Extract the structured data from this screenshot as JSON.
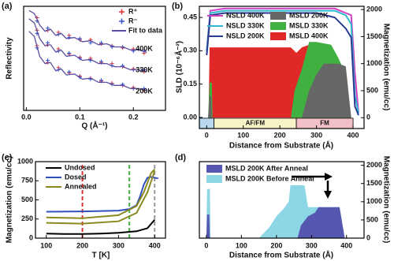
{
  "chart_data": [
    {
      "type": "line",
      "label": "(a)",
      "x_label": "Q (Å⁻¹)",
      "y_label": "Reflectivity",
      "xlim": [
        -0.005,
        0.26
      ],
      "ylim": [
        0,
        10
      ],
      "xticks": [
        {
          "value": 0,
          "label": "0.0"
        },
        0.1,
        0.2
      ],
      "annotations": [
        "400K",
        "330K",
        "200K"
      ],
      "series": [
        {
          "name": "R⁺",
          "color": "#e03030",
          "style": "points",
          "x": [
            0.02,
            0.04,
            0.06,
            0.08,
            0.1,
            0.12,
            0.14,
            0.16,
            0.18,
            0.2,
            0.22,
            0.02,
            0.04,
            0.06,
            0.08,
            0.1,
            0.12,
            0.14,
            0.16,
            0.18,
            0.2,
            0.22,
            0.02,
            0.04,
            0.06,
            0.08,
            0.1,
            0.12,
            0.14,
            0.16,
            0.18,
            0.2,
            0.22
          ],
          "values": [
            8.9,
            7.7,
            7.5,
            7.2,
            6.8,
            6.8,
            6.4,
            6.2,
            6.0,
            5.9,
            5.5,
            7.7,
            6.3,
            5.9,
            5.4,
            5.1,
            5.0,
            4.6,
            4.5,
            4.2,
            4.0,
            3.7,
            6.2,
            4.6,
            4.1,
            3.6,
            3.3,
            3.1,
            2.8,
            2.6,
            2.4,
            2.2,
            1.9
          ]
        },
        {
          "name": "R⁻",
          "color": "#3050d0",
          "style": "points",
          "x": [
            0.02,
            0.04,
            0.06,
            0.08,
            0.1,
            0.12,
            0.14,
            0.16,
            0.18,
            0.2,
            0.22,
            0.02,
            0.04,
            0.06,
            0.08,
            0.1,
            0.12,
            0.14,
            0.16,
            0.18,
            0.2,
            0.22,
            0.02,
            0.04,
            0.06,
            0.08,
            0.1,
            0.12,
            0.14,
            0.16,
            0.18,
            0.2,
            0.22
          ],
          "values": [
            8.6,
            7.9,
            7.3,
            7.0,
            6.9,
            6.5,
            6.5,
            6.1,
            6.1,
            5.7,
            5.7,
            7.4,
            6.5,
            5.7,
            5.5,
            5.0,
            4.8,
            4.7,
            4.3,
            4.3,
            3.9,
            3.9,
            6.0,
            4.8,
            3.9,
            3.7,
            3.2,
            3.0,
            2.9,
            2.5,
            2.5,
            2.1,
            2.1
          ]
        },
        {
          "name": "Fit to data",
          "color": "#5a4fa0",
          "style": "line",
          "x": [
            0.005,
            0.015,
            0.025,
            0.035,
            0.045,
            0.055,
            0.065,
            0.075,
            0.09,
            0.105,
            0.12,
            0.135,
            0.15,
            0.165,
            0.18,
            0.195,
            0.21,
            0.225,
            null,
            0.005,
            0.015,
            0.025,
            0.035,
            0.045,
            0.055,
            0.065,
            0.075,
            0.09,
            0.105,
            0.12,
            0.135,
            0.15,
            0.165,
            0.18,
            0.195,
            0.21,
            0.225,
            null,
            0.005,
            0.015,
            0.025,
            0.035,
            0.045,
            0.055,
            0.065,
            0.075,
            0.09,
            0.105,
            0.12,
            0.135,
            0.15,
            0.165,
            0.18,
            0.195,
            0.21,
            0.225
          ],
          "values": [
            9.6,
            9.3,
            8.2,
            7.6,
            7.8,
            7.2,
            7.4,
            6.9,
            7.0,
            6.6,
            6.7,
            6.3,
            6.4,
            6.1,
            6.1,
            5.8,
            5.8,
            5.6,
            null,
            8.8,
            8.4,
            6.9,
            6.2,
            6.3,
            5.6,
            5.8,
            5.2,
            5.3,
            4.8,
            4.9,
            4.5,
            4.5,
            4.2,
            4.2,
            3.9,
            3.9,
            3.7,
            null,
            7.6,
            7.1,
            5.2,
            4.5,
            4.6,
            3.8,
            4.0,
            3.4,
            3.5,
            3.0,
            3.1,
            2.7,
            2.7,
            2.4,
            2.4,
            2.1,
            2.1,
            1.9
          ]
        }
      ]
    },
    {
      "type": "area",
      "label": "(b)",
      "x_label": "Distance from Substrate (Å)",
      "y_label": "SLD (10⁻⁶Å⁻²)",
      "y2_label": "Magnetization (emu/cc)",
      "xlim": [
        -20,
        430
      ],
      "ylim": [
        -0.05,
        0.5
      ],
      "y2lim": [
        -200,
        2060
      ],
      "xticks": [
        0,
        100,
        200,
        300,
        400
      ],
      "yticks": [
        {
          "value": 0,
          "label": "0.00"
        },
        0.15,
        {
          "value": 0.3,
          "label": "0.30"
        },
        0.45
      ],
      "y2ticks": [
        0,
        500,
        1000,
        1500,
        2000
      ],
      "regions": [
        "AF/FM",
        "FM"
      ],
      "series": [
        {
          "name": "NSLD 400K",
          "color": "#d040c0",
          "style": "line",
          "x": [
            0,
            10,
            50,
            150,
            250,
            300,
            350,
            380,
            395,
            405,
            415
          ],
          "values": [
            0.3,
            0.48,
            0.49,
            0.49,
            0.49,
            0.49,
            0.49,
            0.47,
            0.46,
            0.2,
            0.02
          ]
        },
        {
          "name": "NSLD 330K",
          "color": "#30b8d0",
          "style": "line",
          "x": [
            0,
            10,
            50,
            150,
            250,
            300,
            350,
            380,
            395,
            405,
            415
          ],
          "values": [
            0.3,
            0.47,
            0.48,
            0.48,
            0.48,
            0.48,
            0.48,
            0.46,
            0.42,
            0.1,
            0.02
          ]
        },
        {
          "name": "NSLD 200K",
          "color": "#2a3a90",
          "style": "line",
          "x": [
            0,
            10,
            50,
            150,
            250,
            300,
            350,
            380,
            395,
            405,
            415
          ],
          "values": [
            0.28,
            0.46,
            0.47,
            0.47,
            0.47,
            0.47,
            0.45,
            0.4,
            0.36,
            0.05,
            0.01
          ]
        },
        {
          "name": "MSLD 200K",
          "color": "#666666",
          "style": "area",
          "axis": "y2",
          "x": [
            0,
            4,
            8,
            12,
            14,
            260,
            280,
            300,
            320,
            360,
            380,
            395
          ],
          "values": [
            0,
            0,
            400,
            400,
            0,
            0,
            500,
            800,
            1000,
            1000,
            950,
            0
          ]
        },
        {
          "name": "MSLD 330K",
          "color": "#40b040",
          "style": "area",
          "axis": "y2",
          "x": [
            0,
            4,
            8,
            14,
            16,
            230,
            240,
            260,
            280,
            300,
            340,
            360,
            380,
            395
          ],
          "values": [
            0,
            0,
            650,
            650,
            0,
            0,
            500,
            900,
            1400,
            1400,
            1350,
            1100,
            800,
            0
          ]
        },
        {
          "name": "MSLD 400K",
          "color": "#e02828",
          "style": "area",
          "axis": "y2",
          "x": [
            0,
            5,
            8,
            230,
            245,
            260,
            280,
            330,
            345,
            360,
            380,
            395
          ],
          "values": [
            0,
            0,
            1300,
            1300,
            1200,
            1300,
            1350,
            1350,
            1100,
            800,
            400,
            0
          ]
        }
      ]
    },
    {
      "type": "line",
      "label": "(c)",
      "x_label": "T [K]",
      "y_label": "Magnetization (emu/cc)",
      "xlim": [
        70,
        430
      ],
      "ylim": [
        0,
        1000
      ],
      "xticks": [
        100,
        200,
        300,
        400
      ],
      "yticks": [
        0,
        250,
        500,
        750,
        1000
      ],
      "markers": [
        {
          "x": 200,
          "color": "#e03030"
        },
        {
          "x": 330,
          "color": "#40b040"
        },
        {
          "x": 400,
          "color": "#999999"
        }
      ],
      "series": [
        {
          "name": "Undosed",
          "color": "#000000",
          "style": "line",
          "x": [
            100,
            150,
            200,
            250,
            300,
            350,
            380,
            400
          ],
          "values": [
            60,
            55,
            55,
            60,
            70,
            90,
            130,
            240
          ]
        },
        {
          "name": "Dosed",
          "color": "#3050c0",
          "style": "line",
          "x": [
            100,
            200,
            300,
            330,
            350,
            360,
            370,
            380,
            390,
            410
          ],
          "values": [
            345,
            350,
            360,
            380,
            430,
            550,
            700,
            790,
            800,
            780
          ]
        },
        {
          "name": "Annealed",
          "color": "#8a8a20",
          "style": "line",
          "x": [
            100,
            200,
            300,
            350,
            370,
            390,
            400,
            null,
            100,
            200,
            300,
            350,
            380,
            400
          ],
          "values": [
            270,
            260,
            300,
            420,
            600,
            850,
            900,
            null,
            200,
            190,
            220,
            330,
            600,
            880
          ]
        }
      ]
    },
    {
      "type": "area",
      "label": "(d)",
      "x_label": "Distance from Substrate (Å)",
      "y2_label": "Magnetization (emu/cc)",
      "xlim": [
        -20,
        450
      ],
      "y2lim": [
        0,
        2100
      ],
      "xticks": [
        0,
        100,
        200,
        300,
        400
      ],
      "y2ticks": [
        0,
        500,
        1000,
        1500,
        2000
      ],
      "series": [
        {
          "name": "MSLD 200K After Anneal",
          "color": "#5557b0",
          "style": "area",
          "axis": "y2",
          "x": [
            0,
            2,
            8,
            10,
            260,
            270,
            290,
            310,
            320,
            380,
            395
          ],
          "values": [
            0,
            650,
            650,
            0,
            0,
            350,
            600,
            700,
            850,
            850,
            0
          ]
        },
        {
          "name": "MSLD 200K Before Anneal",
          "color": "#8cd6e6",
          "style": "area",
          "axis": "y2",
          "x": [
            0,
            2,
            10,
            12,
            150,
            180,
            200,
            220,
            235,
            240,
            280,
            290,
            380,
            395
          ],
          "values": [
            0,
            1350,
            1350,
            0,
            0,
            300,
            600,
            800,
            1000,
            1450,
            1450,
            850,
            850,
            0
          ]
        }
      ]
    }
  ]
}
